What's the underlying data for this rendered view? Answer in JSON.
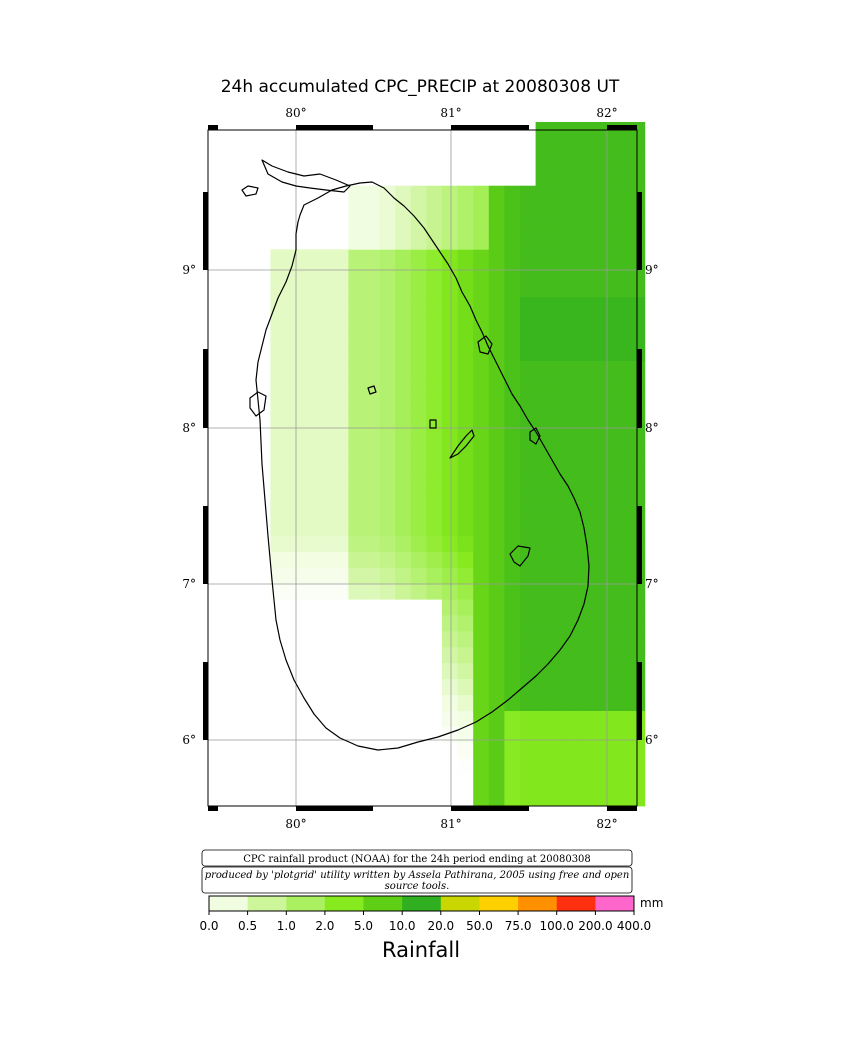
{
  "title": "24h accumulated CPC_PRECIP  at 20080308 UT",
  "axes": {
    "lon_ticks": [
      "80°",
      "81°",
      "82°"
    ],
    "lat_ticks": [
      "9°",
      "8°",
      "7°",
      "6°"
    ]
  },
  "notes": {
    "line1": "CPC rainfall product (NOAA) for the 24h period ending at 20080308",
    "line2a": "produced by 'plotgrid' utility written by Assela Pathirana, 2005 using free and open",
    "line2b": "source tools."
  },
  "colorbar": {
    "labels": [
      "0.0",
      "0.5",
      "1.0",
      "2.0",
      "5.0",
      "10.0",
      "20.0",
      "50.0",
      "75.0",
      "100.0",
      "200.0",
      "400.0"
    ],
    "colors": [
      "#ffffff",
      "#f1fde0",
      "#cdf59a",
      "#aaf060",
      "#86ea1e",
      "#5fcf16",
      "#30b020",
      "#c9d600",
      "#ffd000",
      "#ff9000",
      "#ff3010",
      "#ff66cc"
    ],
    "unit": "mm",
    "title": "Rainfall"
  },
  "map_data": {
    "type": "gridded-field",
    "variable": "24h accumulated precipitation",
    "units": "mm",
    "valid": "20080308",
    "region": "Sri Lanka",
    "lon_range": [
      79.5,
      82.25
    ],
    "lat_range": [
      5.6,
      9.85
    ],
    "grid_resolution_deg": 0.25,
    "precip_zones": [
      {
        "name": "east-coast",
        "lon": [
          81.25,
          82.25
        ],
        "lat": [
          6.5,
          9.5
        ],
        "approx_mm": [
          10,
          20
        ]
      },
      {
        "name": "central-interior",
        "lon": [
          80.5,
          81.25
        ],
        "lat": [
          6.9,
          9.0
        ],
        "approx_mm": [
          5,
          10
        ]
      },
      {
        "name": "western-fringe",
        "lon": [
          79.9,
          80.5
        ],
        "lat": [
          6.9,
          9.0
        ],
        "approx_mm": [
          1,
          5
        ]
      },
      {
        "name": "southwest",
        "lon": [
          79.8,
          80.9
        ],
        "lat": [
          5.9,
          6.9
        ],
        "approx_mm": [
          0,
          0.5
        ]
      }
    ]
  }
}
